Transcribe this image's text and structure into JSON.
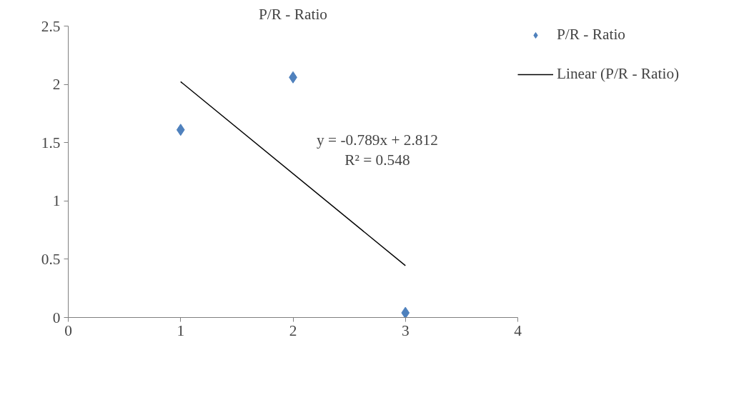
{
  "chart_data": {
    "type": "scatter",
    "title": "P/R - Ratio",
    "series": [
      {
        "name": "P/R - Ratio",
        "color": "#4f81bd",
        "marker": "diamond",
        "x": [
          1,
          2,
          3
        ],
        "values": [
          1.61,
          2.06,
          0.04
        ]
      },
      {
        "name": "Linear (P/R - Ratio)",
        "type": "line",
        "color": "#000000",
        "x": [
          1,
          3
        ],
        "values": [
          2.023,
          0.445
        ]
      }
    ],
    "annotations": [
      "y = -0.789x + 2.812",
      "R² = 0.548"
    ],
    "xlim": [
      0,
      4
    ],
    "xticks": [
      0,
      1,
      2,
      3,
      4
    ],
    "ylim": [
      0,
      2.5
    ],
    "yticks": [
      0,
      0.5,
      1,
      1.5,
      2,
      2.5
    ],
    "grid": false,
    "legend": "right",
    "line_style": "solid"
  }
}
